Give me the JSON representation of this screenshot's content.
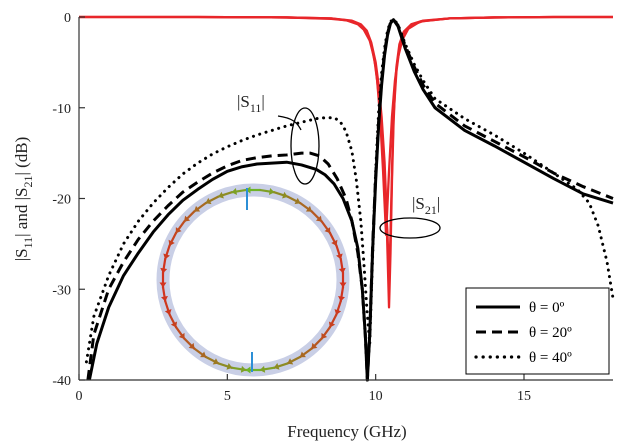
{
  "chart_data": {
    "type": "line",
    "xlabel": "Frequency (GHz)",
    "ylabel": "|S11| and |S21| (dB)",
    "xlim": [
      0,
      18
    ],
    "ylim": [
      -40,
      0
    ],
    "xticks": [
      0,
      5,
      10,
      15
    ],
    "yticks": [
      0,
      -10,
      -20,
      -30,
      -40
    ],
    "grid": false,
    "legend_position": "bottom-right",
    "colors": {
      "s11": "#000000",
      "s21": "#e8262a",
      "axis": "#333333"
    },
    "annotations": {
      "s11": {
        "base": "|S",
        "sub": "11",
        "end": "|"
      },
      "s21": {
        "base": "|S",
        "sub": "21",
        "end": "|"
      }
    },
    "inset": {
      "type": "ring-current-distribution-illustration"
    },
    "series": [
      {
        "name": "θ = 0º",
        "parameter": "S11",
        "style": "solid",
        "x": [
          0.35,
          0.6,
          1.0,
          1.5,
          2.0,
          2.5,
          3.0,
          3.5,
          4.0,
          4.5,
          5.0,
          5.5,
          6.0,
          6.5,
          7.0,
          7.5,
          8.0,
          8.3,
          8.6,
          8.9,
          9.2,
          9.4,
          9.55,
          9.65,
          9.72,
          9.8,
          9.9,
          10.0,
          10.1,
          10.2,
          10.3,
          10.4,
          10.5,
          10.6,
          10.75,
          11.0,
          11.3,
          11.6,
          12.0,
          13.0,
          14.0,
          15.0,
          16.0,
          17.0,
          18.0
        ],
        "y": [
          -40.0,
          -36.0,
          -32.0,
          -28.5,
          -26.0,
          -23.7,
          -21.8,
          -20.2,
          -19.0,
          -17.9,
          -17.0,
          -16.5,
          -16.2,
          -16.1,
          -16.0,
          -16.3,
          -16.8,
          -17.4,
          -18.4,
          -20.0,
          -22.5,
          -25.5,
          -30.0,
          -35.0,
          -40.0,
          -35.0,
          -25.5,
          -18.0,
          -12.0,
          -7.5,
          -4.2,
          -2.0,
          -0.7,
          -0.3,
          -1.0,
          -3.5,
          -6.0,
          -8.0,
          -10.0,
          -12.5,
          -14.2,
          -16.0,
          -17.8,
          -19.5,
          -20.5
        ]
      },
      {
        "name": "θ = 20º",
        "parameter": "S11",
        "style": "dashed",
        "x": [
          0.3,
          0.5,
          1.0,
          1.5,
          2.0,
          2.5,
          3.0,
          3.5,
          4.0,
          4.5,
          5.0,
          5.5,
          6.0,
          6.5,
          7.0,
          7.5,
          7.8,
          8.1,
          8.4,
          8.7,
          9.0,
          9.2,
          9.4,
          9.55,
          9.65,
          9.72,
          9.8,
          9.9,
          10.0,
          10.1,
          10.2,
          10.3,
          10.4,
          10.5,
          10.6,
          10.75,
          11.0,
          11.3,
          11.6,
          12.0,
          13.0,
          14.0,
          15.0,
          16.0,
          17.0,
          18.0
        ],
        "y": [
          -40.0,
          -35.0,
          -30.0,
          -27.0,
          -24.5,
          -22.5,
          -20.8,
          -19.3,
          -18.2,
          -17.2,
          -16.4,
          -15.8,
          -15.5,
          -15.3,
          -15.2,
          -15.0,
          -15.0,
          -15.3,
          -16.2,
          -17.8,
          -20.0,
          -22.5,
          -26.0,
          -30.0,
          -35.0,
          -40.0,
          -35.0,
          -25.0,
          -17.5,
          -11.5,
          -7.0,
          -3.9,
          -1.8,
          -0.6,
          -0.3,
          -0.9,
          -3.2,
          -5.5,
          -7.5,
          -9.5,
          -12.0,
          -13.7,
          -15.4,
          -17.2,
          -18.7,
          -20.0
        ]
      },
      {
        "name": "θ = 40º",
        "parameter": "S11",
        "style": "dotted",
        "x": [
          0.25,
          0.5,
          1.0,
          1.5,
          2.0,
          2.5,
          3.0,
          3.5,
          4.0,
          4.5,
          5.0,
          5.5,
          6.0,
          6.5,
          7.0,
          7.5,
          8.0,
          8.3,
          8.6,
          8.8,
          9.0,
          9.2,
          9.35,
          9.5,
          9.6,
          9.7,
          9.8,
          9.9,
          10.0,
          10.1,
          10.2,
          10.3,
          10.4,
          10.5,
          10.6,
          10.75,
          11.0,
          11.3,
          11.6,
          12.0,
          13.0,
          14.0,
          15.0,
          16.0,
          16.8,
          17.2,
          17.5,
          17.8,
          18.0
        ],
        "y": [
          -38.0,
          -33.0,
          -28.5,
          -25.0,
          -22.5,
          -20.5,
          -18.8,
          -17.3,
          -16.1,
          -15.1,
          -14.3,
          -13.6,
          -13.0,
          -12.5,
          -12.0,
          -11.6,
          -11.2,
          -11.1,
          -11.1,
          -11.5,
          -12.6,
          -14.8,
          -18.0,
          -22.5,
          -27.0,
          -32.0,
          -36.0,
          -26.0,
          -17.0,
          -10.5,
          -6.2,
          -3.4,
          -1.5,
          -0.5,
          -0.25,
          -0.8,
          -3.0,
          -5.2,
          -7.0,
          -9.0,
          -11.2,
          -13.0,
          -15.0,
          -17.2,
          -19.0,
          -20.5,
          -23.0,
          -27.0,
          -31.0
        ]
      },
      {
        "name": "|S21| (θ = 0º)",
        "parameter": "S21",
        "style": "solid",
        "x": [
          0,
          4.0,
          7.0,
          8.5,
          9.2,
          9.5,
          9.7,
          9.85,
          10.0,
          10.1,
          10.2,
          10.3,
          10.35,
          10.4,
          10.45,
          10.5,
          10.55,
          10.6,
          10.65,
          10.7,
          10.8,
          10.95,
          11.2,
          11.6,
          12.5,
          14.0,
          16.0,
          18.0
        ],
        "y": [
          0.0,
          0.0,
          -0.05,
          -0.15,
          -0.4,
          -0.8,
          -1.5,
          -2.8,
          -5.0,
          -7.5,
          -11.0,
          -16.0,
          -20.0,
          -26.0,
          -32.0,
          -26.0,
          -18.0,
          -12.0,
          -8.0,
          -5.5,
          -3.0,
          -1.6,
          -0.8,
          -0.4,
          -0.15,
          -0.05,
          0.0,
          0.0
        ]
      },
      {
        "name": "|S21| (θ = 20º)",
        "parameter": "S21",
        "style": "solid",
        "x": [
          0,
          4.0,
          7.0,
          8.5,
          9.2,
          9.5,
          9.7,
          9.85,
          10.0,
          10.1,
          10.2,
          10.3,
          10.4,
          10.45,
          10.5,
          10.55,
          10.6,
          10.7,
          10.8,
          10.95,
          11.2,
          11.6,
          12.5,
          14.0,
          16.0,
          18.0
        ],
        "y": [
          0.0,
          0.0,
          -0.05,
          -0.15,
          -0.45,
          -0.9,
          -1.7,
          -3.0,
          -5.5,
          -8.5,
          -12.5,
          -18.0,
          -24.0,
          -29.0,
          -24.0,
          -17.0,
          -11.0,
          -6.0,
          -3.5,
          -1.8,
          -0.9,
          -0.45,
          -0.15,
          -0.05,
          0.0,
          0.0
        ]
      },
      {
        "name": "|S21| (θ = 40º)",
        "parameter": "S21",
        "style": "solid",
        "x": [
          0,
          4.0,
          7.0,
          8.5,
          9.0,
          9.4,
          9.6,
          9.8,
          9.95,
          10.05,
          10.15,
          10.25,
          10.35,
          10.45,
          10.55,
          10.65,
          10.75,
          10.9,
          11.1,
          11.5,
          12.5,
          14.0,
          16.0,
          18.0
        ],
        "y": [
          0.0,
          0.0,
          -0.05,
          -0.2,
          -0.35,
          -0.8,
          -1.4,
          -2.6,
          -4.5,
          -7.0,
          -11.0,
          -17.0,
          -24.0,
          -17.0,
          -11.0,
          -7.0,
          -4.5,
          -2.5,
          -1.3,
          -0.5,
          -0.15,
          -0.05,
          0.0,
          0.0
        ]
      }
    ],
    "legend": {
      "entries": [
        {
          "label": "θ = 0º",
          "style": "solid"
        },
        {
          "label": "θ = 20º",
          "style": "dashed"
        },
        {
          "label": "θ = 40º",
          "style": "dotted"
        }
      ]
    }
  }
}
